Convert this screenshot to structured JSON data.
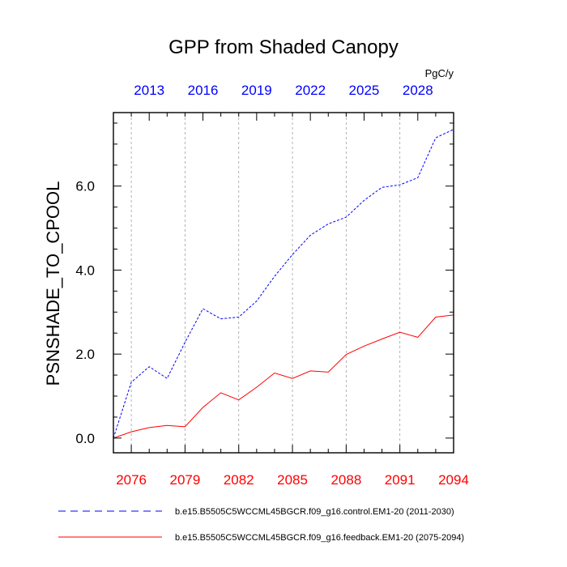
{
  "chart_data": {
    "type": "line",
    "title": "GPP from Shaded Canopy",
    "units": "PgC/y",
    "ylabel": "PSNSHADE_TO_CPOOL",
    "xlabel": "",
    "ylim": [
      -0.35,
      7.75
    ],
    "yticks": [
      0.0,
      2.0,
      4.0,
      6.0
    ],
    "ytick_labels": [
      "0.0",
      "2.0",
      "4.0",
      "6.0"
    ],
    "x_bottom": {
      "range": [
        2075,
        2094
      ],
      "ticks": [
        2076,
        2079,
        2082,
        2085,
        2088,
        2091,
        2094
      ],
      "tick_labels": [
        "2076",
        "2079",
        "2082",
        "2085",
        "2088",
        "2091",
        "2094"
      ],
      "color": "#ff0000"
    },
    "x_top": {
      "range": [
        2011,
        2030
      ],
      "ticks": [
        2013,
        2016,
        2019,
        2022,
        2025,
        2028
      ],
      "tick_labels": [
        "2013",
        "2016",
        "2019",
        "2022",
        "2025",
        "2028"
      ],
      "color": "#0000ff"
    },
    "grid": "vertical-dashed",
    "series": [
      {
        "name": "b.e15.B5505C5WCCML45BGCR.f09_g16.control.EM1-20 (2011-2030)",
        "axis": "top",
        "color": "#0000ff",
        "style": "dashed",
        "x": [
          2011,
          2012,
          2013,
          2014,
          2015,
          2016,
          2017,
          2018,
          2019,
          2020,
          2021,
          2022,
          2023,
          2024,
          2025,
          2026,
          2027,
          2028,
          2029,
          2030
        ],
        "values": [
          0.0,
          1.33,
          1.7,
          1.42,
          2.28,
          3.08,
          2.84,
          2.88,
          3.26,
          3.85,
          4.37,
          4.83,
          5.1,
          5.26,
          5.66,
          5.97,
          6.03,
          6.2,
          7.15,
          7.35
        ]
      },
      {
        "name": "b.e15.B5505C5WCCML45BGCR.f09_g16.feedback.EM1-20 (2075-2094)",
        "axis": "bottom",
        "color": "#ff0000",
        "style": "solid",
        "x": [
          2075,
          2076,
          2077,
          2078,
          2079,
          2080,
          2081,
          2082,
          2083,
          2084,
          2085,
          2086,
          2087,
          2088,
          2089,
          2090,
          2091,
          2092,
          2093,
          2094
        ],
        "values": [
          0.0,
          0.15,
          0.25,
          0.3,
          0.27,
          0.73,
          1.08,
          0.91,
          1.21,
          1.55,
          1.42,
          1.6,
          1.57,
          1.99,
          2.19,
          2.36,
          2.52,
          2.4,
          2.88,
          2.93
        ]
      }
    ],
    "legend": {
      "placement": "bottom",
      "entries": [
        "b.e15.B5505C5WCCML45BGCR.f09_g16.control.EM1-20 (2011-2030)",
        "b.e15.B5505C5WCCML45BGCR.f09_g16.feedback.EM1-20 (2075-2094)"
      ]
    }
  }
}
